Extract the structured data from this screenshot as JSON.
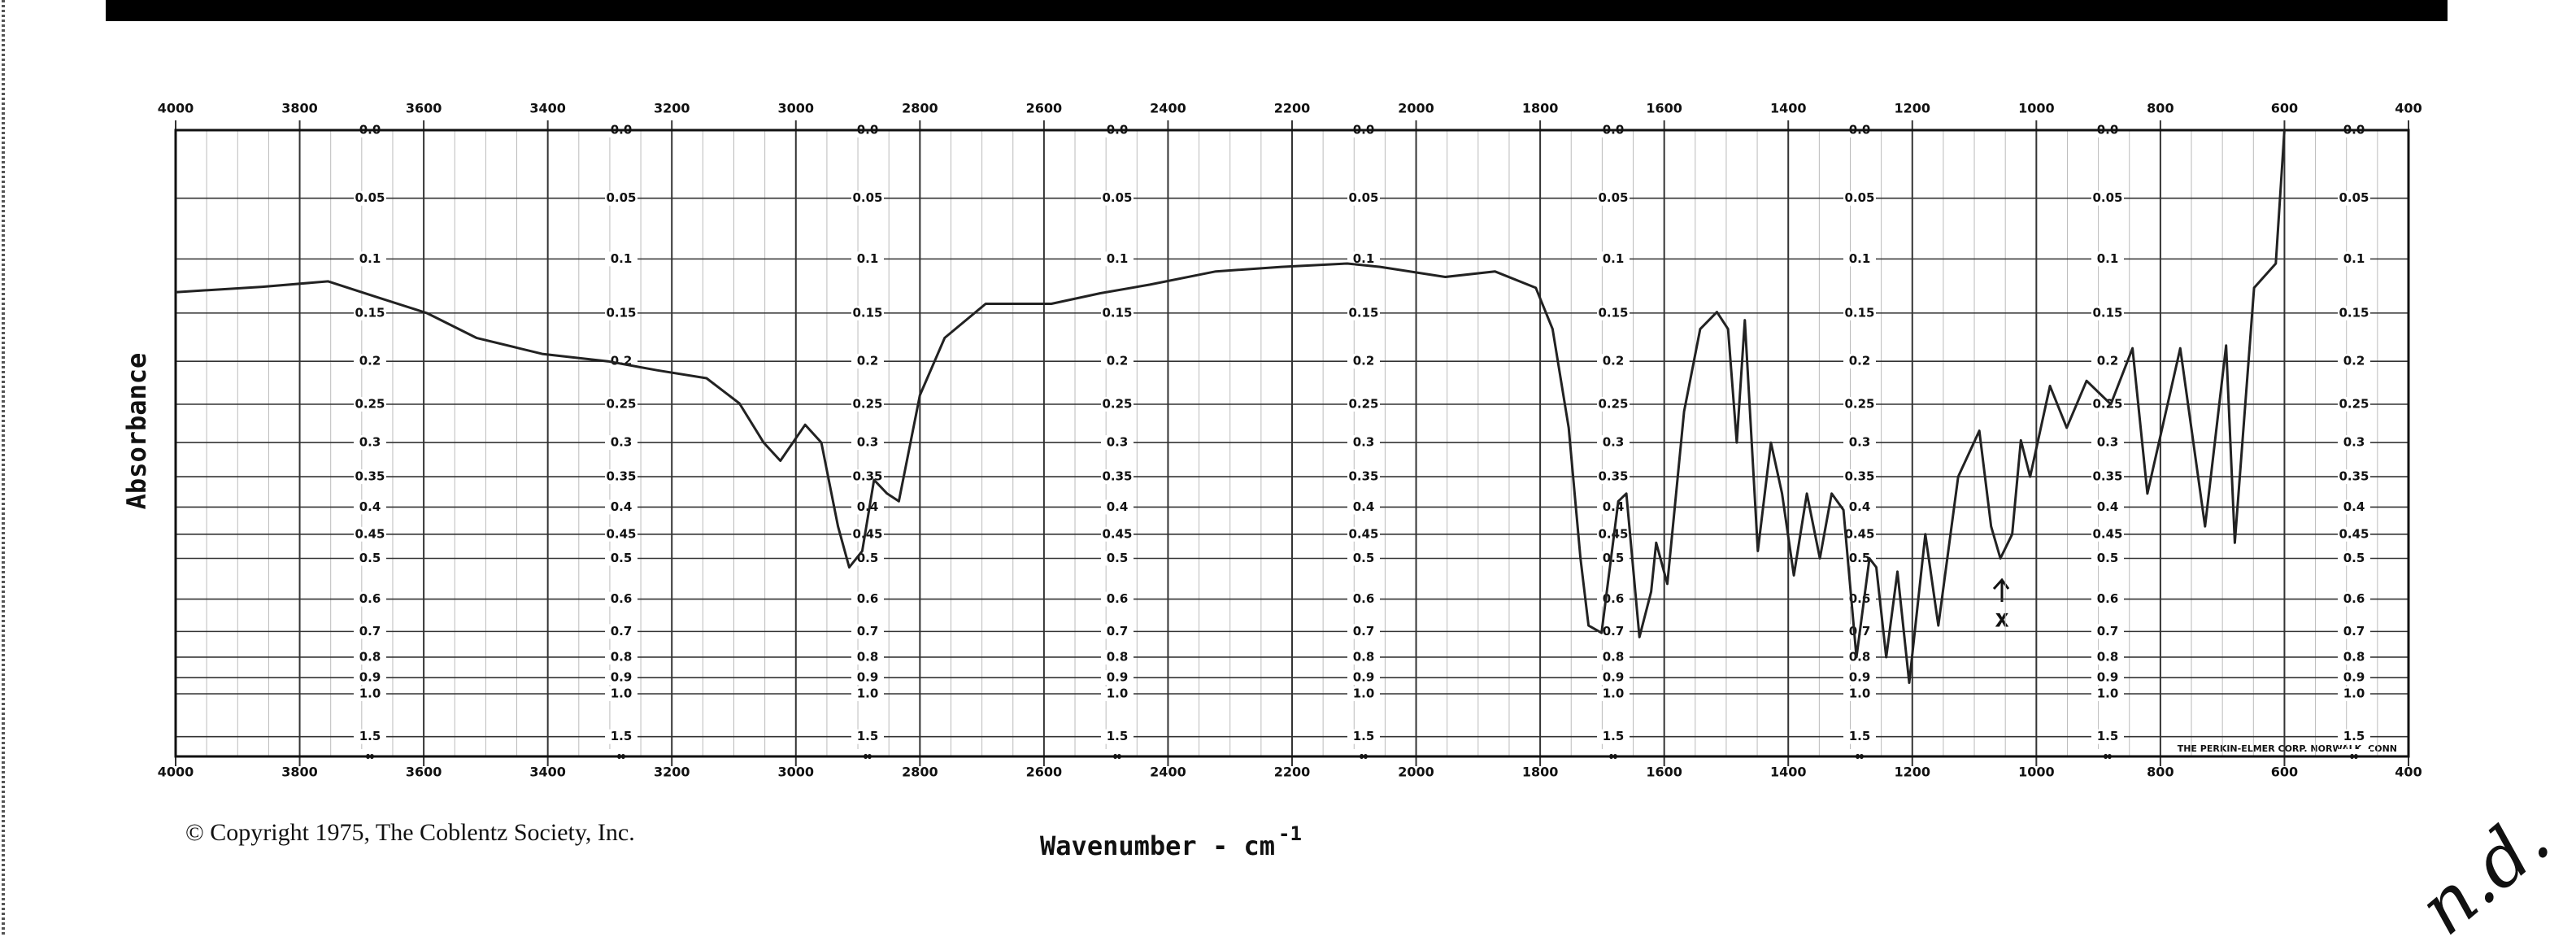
{
  "chart_data": {
    "type": "line",
    "y_label": "Absorbance",
    "x_label": "Wavenumber - cm",
    "x_label_superscript": "-1",
    "copyright": "© Copyright 1975, The Coblentz Society, Inc.",
    "maker": "THE PERKIN-ELMER CORP. NORWALK, CONN",
    "annotations": [
      "x",
      "n.d."
    ],
    "yscale": "transmittance",
    "grid": true,
    "color": "#222222",
    "xlim": [
      4000,
      400
    ],
    "xticks": [
      4000,
      3800,
      3600,
      3400,
      3200,
      3000,
      2800,
      2600,
      2400,
      2200,
      2000,
      1800,
      1600,
      1400,
      1200,
      1000,
      800,
      600,
      400
    ],
    "ylim": [
      0,
      null
    ],
    "yticks": [
      {
        "value": 0,
        "label": "0.0"
      },
      0.05,
      0.1,
      0.15,
      0.2,
      0.25,
      0.3,
      0.35,
      0.4,
      0.45,
      0.5,
      0.6,
      0.7,
      0.8,
      0.9,
      {
        "value": 1,
        "label": "1.0"
      },
      1.5,
      {
        "value": null,
        "label": "∞"
      }
    ],
    "x": [
      4000,
      3860,
      3754,
      3674,
      3595,
      3515,
      3409,
      3303,
      3224,
      3144,
      3091,
      3052,
      3025,
      2985,
      2959,
      2932,
      2914,
      2893,
      2874,
      2853,
      2834,
      2800,
      2760,
      2694,
      2588,
      2509,
      2429,
      2323,
      2217,
      2111,
      2058,
      1953,
      1873,
      1807,
      1780,
      1754,
      1735,
      1722,
      1701,
      1674,
      1661,
      1640,
      1621,
      1613,
      1595,
      1568,
      1542,
      1515,
      1497,
      1483,
      1470,
      1449,
      1428,
      1410,
      1391,
      1370,
      1349,
      1330,
      1311,
      1290,
      1269,
      1258,
      1242,
      1224,
      1205,
      1179,
      1158,
      1126,
      1092,
      1073,
      1058,
      1039,
      1025,
      1010,
      978,
      951,
      919,
      880,
      845,
      821,
      768,
      728,
      694,
      680,
      649,
      614,
      600
    ],
    "y": [
      0.13,
      0.125,
      0.12,
      0.135,
      0.15,
      0.175,
      0.192,
      0.2,
      0.21,
      0.219,
      0.249,
      0.3,
      0.326,
      0.276,
      0.3,
      0.435,
      0.52,
      0.484,
      0.355,
      0.377,
      0.39,
      0.239,
      0.175,
      0.141,
      0.141,
      0.131,
      0.123,
      0.111,
      0.107,
      0.104,
      0.107,
      0.116,
      0.111,
      0.126,
      0.166,
      0.28,
      0.5,
      0.68,
      0.705,
      0.39,
      0.377,
      0.72,
      0.58,
      0.467,
      0.56,
      0.259,
      0.166,
      0.149,
      0.166,
      0.3,
      0.157,
      0.484,
      0.3,
      0.377,
      0.539,
      0.377,
      0.5,
      0.377,
      0.405,
      0.8,
      0.5,
      0.52,
      0.8,
      0.53,
      0.93,
      0.45,
      0.68,
      0.35,
      0.284,
      0.435,
      0.5,
      0.45,
      0.297,
      0.35,
      0.228,
      0.28,
      0.222,
      0.25,
      0.186,
      0.377,
      0.186,
      0.435,
      0.183,
      0.467,
      0.126,
      0.104,
      0
    ]
  }
}
